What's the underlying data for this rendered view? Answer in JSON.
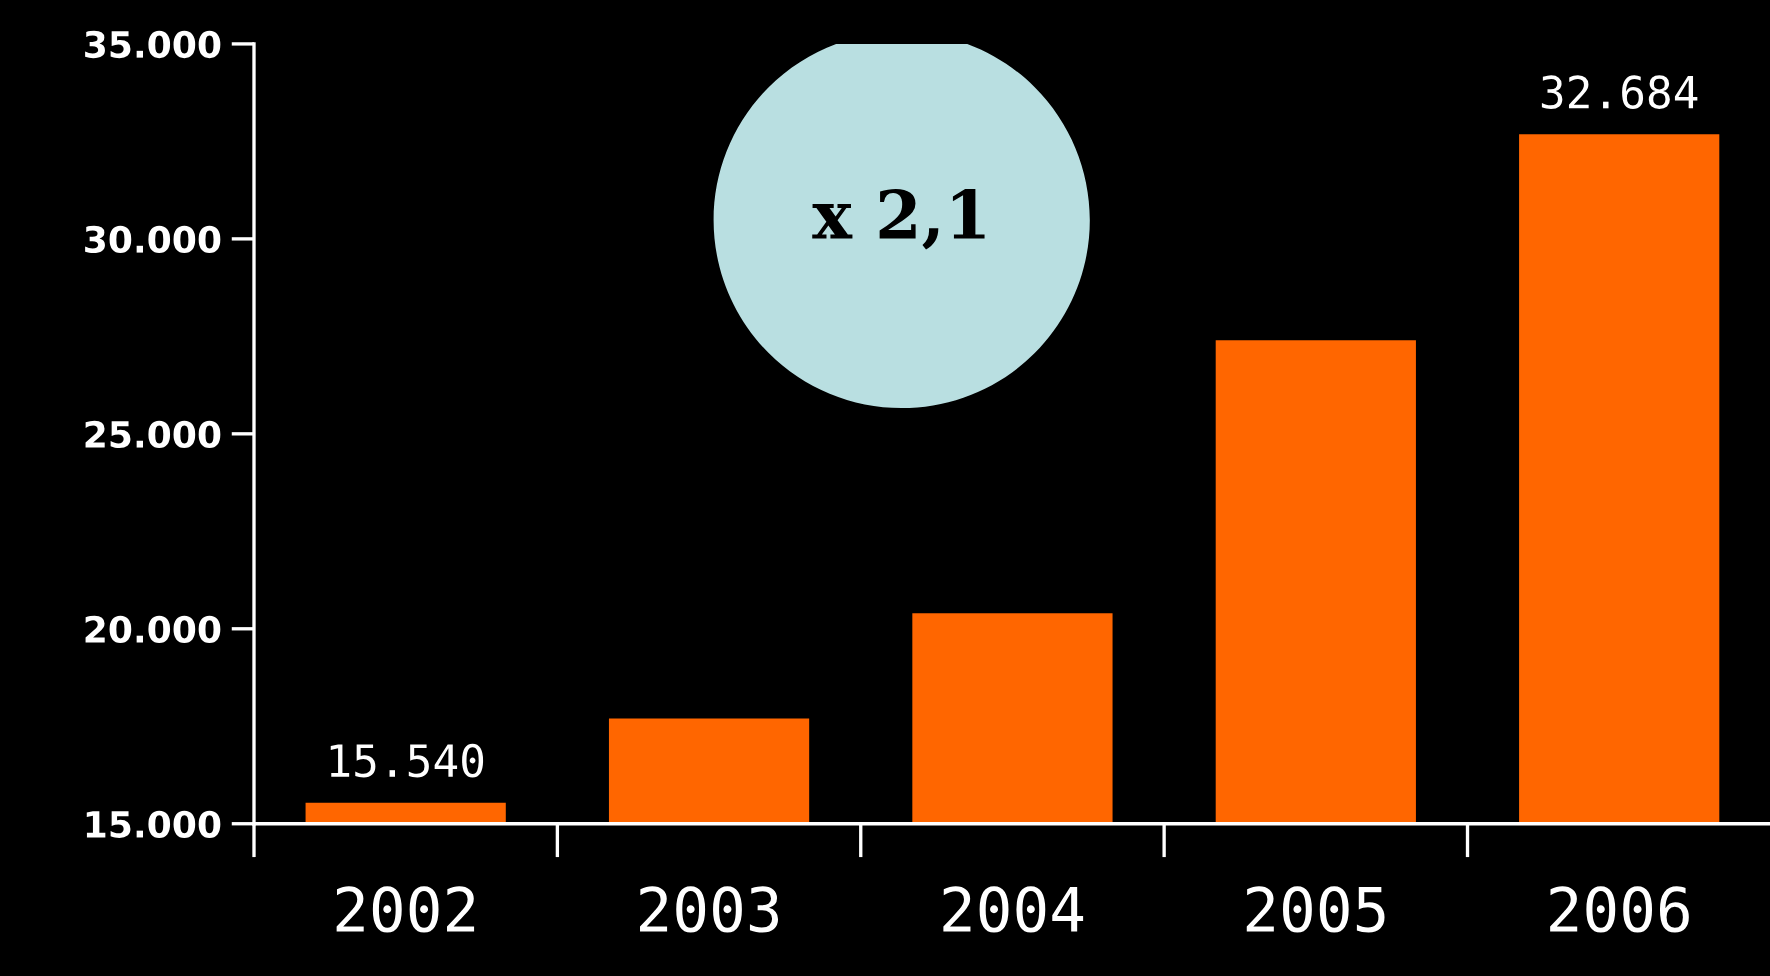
{
  "chart_data": {
    "type": "bar",
    "categories": [
      "2002",
      "2003",
      "2004",
      "2005",
      "2006"
    ],
    "values": [
      15540,
      17700,
      20400,
      27400,
      32684
    ],
    "value_labels": [
      "15.540",
      null,
      null,
      null,
      "32.684"
    ],
    "color": "#ff6600",
    "ylim": [
      15000,
      35000
    ],
    "yticks": [
      {
        "value": 15000,
        "label": "15.000"
      },
      {
        "value": 20000,
        "label": "20.000"
      },
      {
        "value": 25000,
        "label": "25.000"
      },
      {
        "value": 30000,
        "label": "30.000"
      },
      {
        "value": 35000,
        "label": "35.000"
      }
    ],
    "annotations": [
      "x 2,1"
    ],
    "grid": false,
    "legend": false
  }
}
